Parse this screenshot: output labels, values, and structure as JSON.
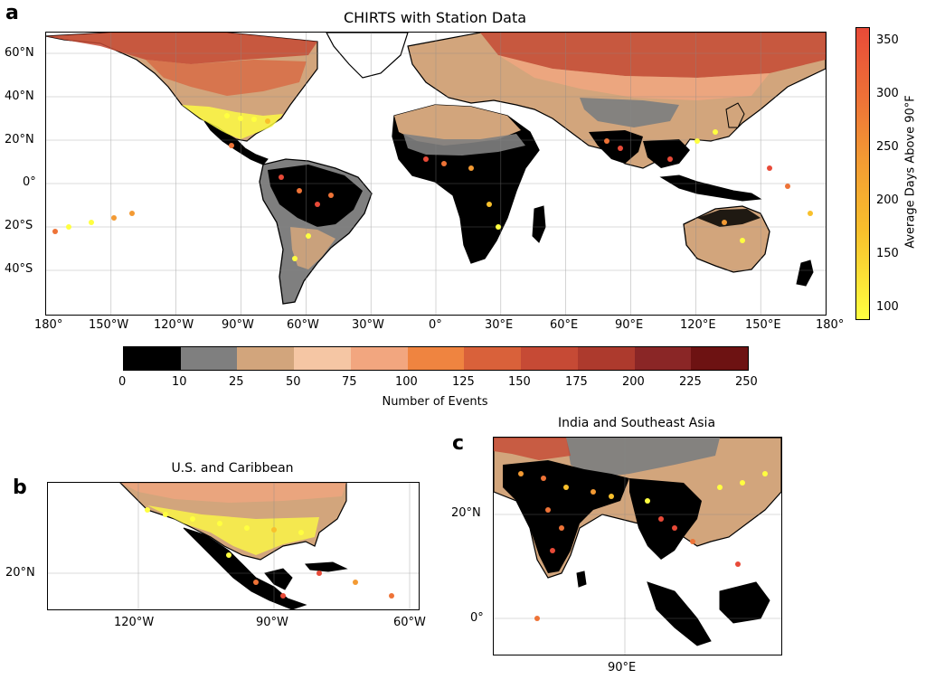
{
  "panel_a": {
    "letter": "a",
    "title": "CHIRTS with Station Data",
    "lat_ticks": [
      "60°N",
      "40°N",
      "20°N",
      "0°",
      "20°S",
      "40°S"
    ],
    "lon_ticks": [
      "180°",
      "150°W",
      "120°W",
      "90°W",
      "60°W",
      "30°W",
      "0°",
      "30°E",
      "60°E",
      "90°E",
      "120°E",
      "150°E",
      "180°"
    ]
  },
  "colorbar_horizontal": {
    "label": "Number of Events",
    "ticks": [
      "0",
      "10",
      "25",
      "50",
      "75",
      "100",
      "125",
      "150",
      "175",
      "200",
      "225",
      "250"
    ],
    "colors": [
      "#000000",
      "#7f7f7f",
      "#d2a57c",
      "#f5c6a4",
      "#f2a67f",
      "#ef8440",
      "#d9613a",
      "#c64a35",
      "#ad3a2d",
      "#8a2626",
      "#6d1212"
    ]
  },
  "colorbar_vertical": {
    "label": "Average Days Above 90°F",
    "ticks": [
      "350",
      "300",
      "250",
      "200",
      "150",
      "100"
    ],
    "gradient": [
      "#ffff40",
      "#f8c02c",
      "#f39a33",
      "#ee7337",
      "#e84a38"
    ]
  },
  "panel_b": {
    "letter": "b",
    "title": "U.S. and Caribbean",
    "lat_ticks": [
      "20°N"
    ],
    "lon_ticks": [
      "120°W",
      "90°W",
      "60°W"
    ]
  },
  "panel_c": {
    "letter": "c",
    "title": "India and Southeast Asia",
    "lat_ticks": [
      "20°N",
      "0°"
    ],
    "lon_ticks": [
      "90°E"
    ]
  },
  "colors": {
    "ocean": "#ffffff",
    "land_outline": "#000000",
    "station_low": "#ffff40",
    "station_high": "#e84a38"
  }
}
